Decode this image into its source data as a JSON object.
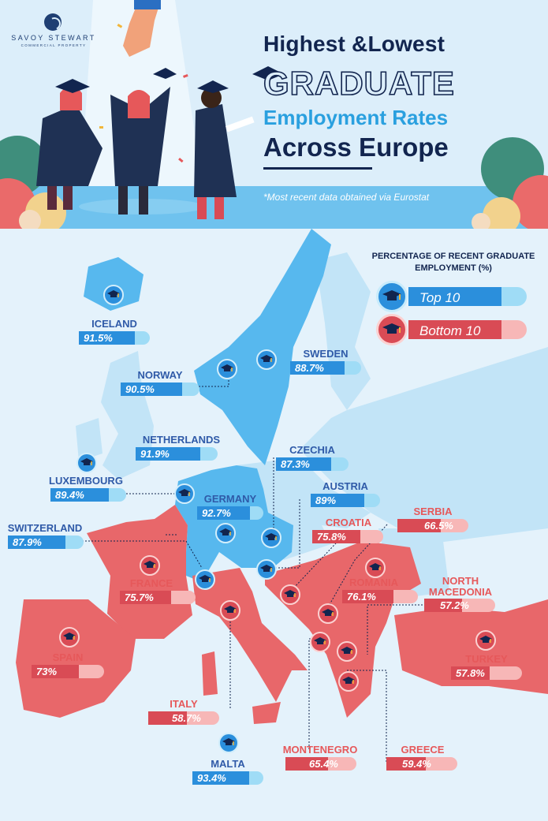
{
  "brand": {
    "name": "SAVOY STEWART",
    "tagline": "COMMERCIAL PROPERTY"
  },
  "title": {
    "line1": "Highest &Lowest",
    "line2": "GRADUATE",
    "line3": "Employment Rates",
    "line4": "Across Europe"
  },
  "note": "*Most recent data obtained via Eurostat",
  "legend": {
    "title": "PERCENTAGE OF RECENT GRADUATE EMPLOYMENT (%)",
    "top": "Top 10",
    "bottom": "Bottom 10"
  },
  "colors": {
    "top": "#2b8fdc",
    "bottom": "#d94b55",
    "navy": "#12254f",
    "sea": "#e4f2fb"
  },
  "countries": [
    {
      "name": "ICELAND",
      "value": "91.5%",
      "pct": 91.5,
      "group": "top"
    },
    {
      "name": "NORWAY",
      "value": "90.5%",
      "pct": 90.5,
      "group": "top"
    },
    {
      "name": "SWEDEN",
      "value": "88.7%",
      "pct": 88.7,
      "group": "top"
    },
    {
      "name": "NETHERLANDS",
      "value": "91.9%",
      "pct": 91.9,
      "group": "top"
    },
    {
      "name": "CZECHIA",
      "value": "87.3%",
      "pct": 87.3,
      "group": "top"
    },
    {
      "name": "LUXEMBOURG",
      "value": "89.4%",
      "pct": 89.4,
      "group": "top"
    },
    {
      "name": "AUSTRIA",
      "value": "89%",
      "pct": 89,
      "group": "top"
    },
    {
      "name": "GERMANY",
      "value": "92.7%",
      "pct": 92.7,
      "group": "top"
    },
    {
      "name": "SWITZERLAND",
      "value": "87.9%",
      "pct": 87.9,
      "group": "top"
    },
    {
      "name": "MALTA",
      "value": "93.4%",
      "pct": 93.4,
      "group": "top"
    },
    {
      "name": "SERBIA",
      "value": "66.5%",
      "pct": 66.5,
      "group": "bottom"
    },
    {
      "name": "CROATIA",
      "value": "75.8%",
      "pct": 75.8,
      "group": "bottom"
    },
    {
      "name": "ROMANIA",
      "value": "76.1%",
      "pct": 76.1,
      "group": "bottom"
    },
    {
      "name": "NORTH MACEDONIA",
      "value": "57.2%",
      "pct": 57.2,
      "group": "bottom"
    },
    {
      "name": "FRANCE",
      "value": "75.7%",
      "pct": 75.7,
      "group": "bottom"
    },
    {
      "name": "SPAIN",
      "value": "73%",
      "pct": 73,
      "group": "bottom"
    },
    {
      "name": "TURKEY",
      "value": "57.8%",
      "pct": 57.8,
      "group": "bottom"
    },
    {
      "name": "ITALY",
      "value": "58.7%",
      "pct": 58.7,
      "group": "bottom"
    },
    {
      "name": "MONTENEGRO",
      "value": "65.4%",
      "pct": 65.4,
      "group": "bottom"
    },
    {
      "name": "GREECE",
      "value": "59.4%",
      "pct": 59.4,
      "group": "bottom"
    }
  ]
}
